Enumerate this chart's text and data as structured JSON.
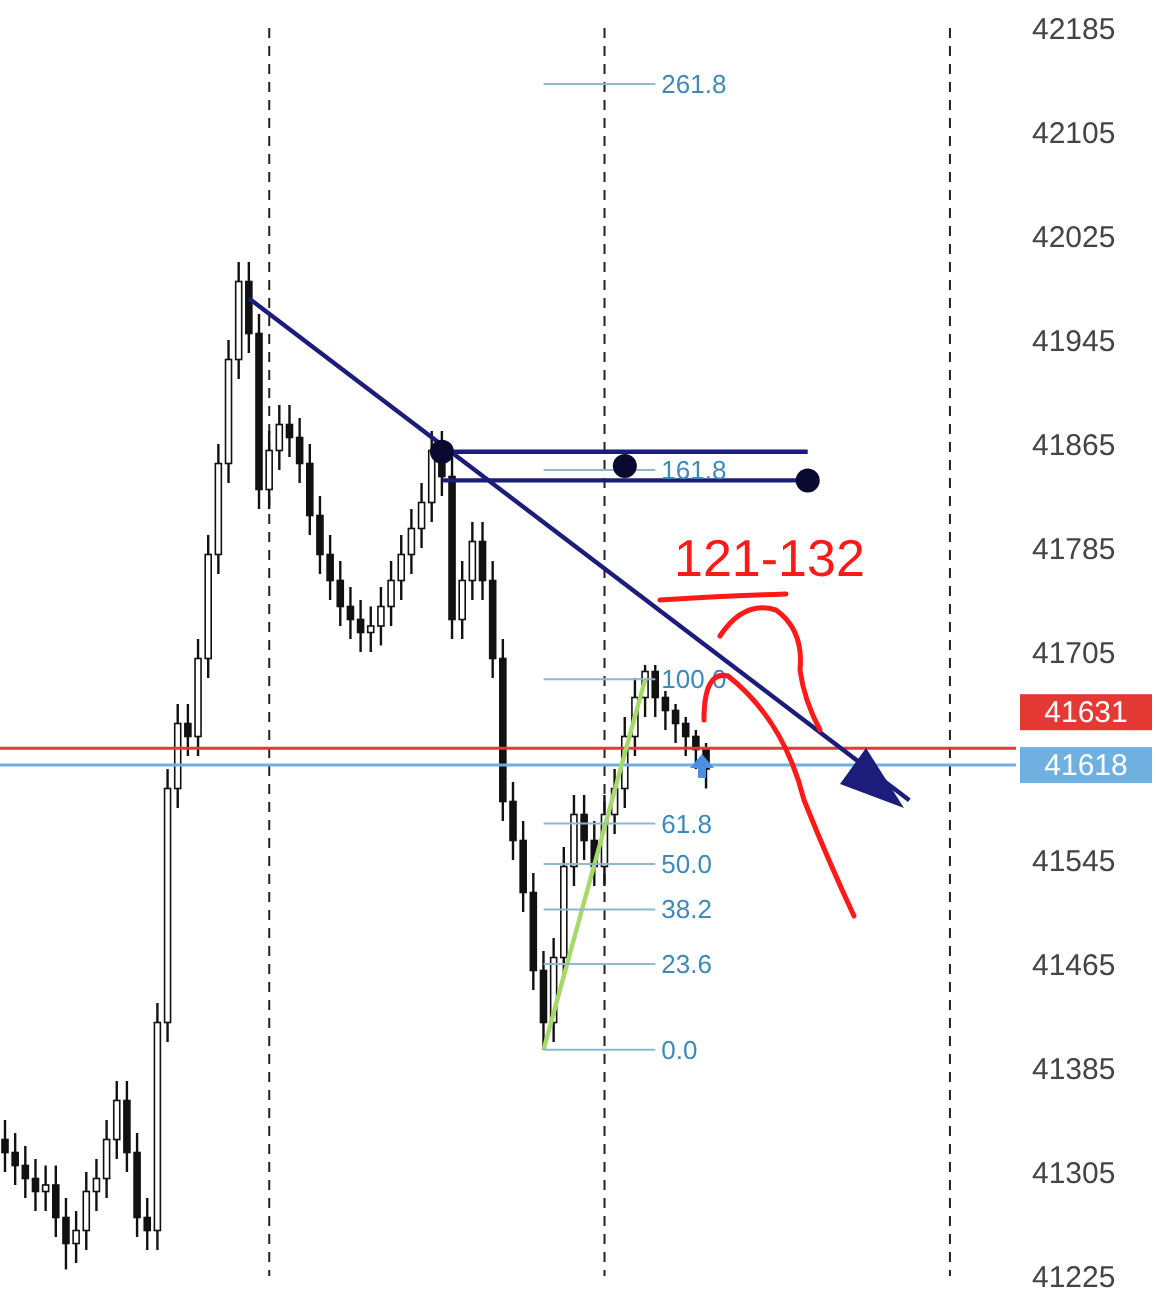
{
  "chart_data": {
    "type": "candlestick",
    "categories": [
      null,
      null,
      null,
      null,
      null,
      null,
      null,
      null,
      null,
      null,
      null,
      null,
      null,
      null,
      null,
      null,
      null,
      null,
      null,
      null,
      null,
      null,
      null,
      null,
      null,
      null,
      null,
      null,
      null,
      null,
      null,
      null,
      null,
      null,
      null,
      null,
      null,
      null,
      null,
      null,
      null,
      null,
      null,
      null,
      null,
      null,
      null,
      null,
      null,
      null,
      null,
      null,
      null,
      null,
      null,
      null,
      null,
      null,
      null,
      null,
      null,
      null,
      null,
      null,
      null,
      null,
      null,
      null,
      null,
      null,
      null,
      null,
      null,
      null,
      null,
      null,
      null,
      null,
      null,
      null,
      null,
      null,
      null,
      null,
      null,
      null,
      null,
      null,
      null,
      null,
      null,
      null,
      null,
      null,
      null,
      null,
      null,
      null,
      null,
      null
    ],
    "color": "#111111",
    "ohlc": [
      [
        41330,
        41345,
        41305,
        41320
      ],
      [
        41320,
        41335,
        41295,
        41310
      ],
      [
        41310,
        41325,
        41285,
        41300
      ],
      [
        41300,
        41315,
        41275,
        41290
      ],
      [
        41290,
        41310,
        41275,
        41295
      ],
      [
        41295,
        41310,
        41255,
        41270
      ],
      [
        41270,
        41285,
        41230,
        41250
      ],
      [
        41250,
        41275,
        41235,
        41260
      ],
      [
        41260,
        41305,
        41245,
        41290
      ],
      [
        41290,
        41315,
        41275,
        41300
      ],
      [
        41300,
        41345,
        41285,
        41330
      ],
      [
        41330,
        41375,
        41315,
        41360
      ],
      [
        41360,
        41375,
        41305,
        41320
      ],
      [
        41320,
        41335,
        41255,
        41270
      ],
      [
        41270,
        41285,
        41245,
        41260
      ],
      [
        41260,
        41435,
        41245,
        41420
      ],
      [
        41420,
        41615,
        41405,
        41600
      ],
      [
        41600,
        41665,
        41585,
        41650
      ],
      [
        41650,
        41665,
        41625,
        41640
      ],
      [
        41640,
        41715,
        41625,
        41700
      ],
      [
        41700,
        41795,
        41685,
        41780
      ],
      [
        41780,
        41865,
        41765,
        41850
      ],
      [
        41850,
        41945,
        41835,
        41930
      ],
      [
        41930,
        42005,
        41915,
        41990
      ],
      [
        41990,
        42005,
        41935,
        41950
      ],
      [
        41950,
        41965,
        41815,
        41830
      ],
      [
        41830,
        41875,
        41815,
        41860
      ],
      [
        41860,
        41895,
        41845,
        41880
      ],
      [
        41880,
        41895,
        41855,
        41870
      ],
      [
        41870,
        41885,
        41835,
        41850
      ],
      [
        41850,
        41865,
        41795,
        41810
      ],
      [
        41810,
        41825,
        41765,
        41780
      ],
      [
        41780,
        41795,
        41745,
        41760
      ],
      [
        41760,
        41775,
        41725,
        41740
      ],
      [
        41740,
        41755,
        41715,
        41730
      ],
      [
        41730,
        41745,
        41705,
        41720
      ],
      [
        41720,
        41740,
        41705,
        41725
      ],
      [
        41725,
        41755,
        41710,
        41740
      ],
      [
        41740,
        41775,
        41725,
        41760
      ],
      [
        41760,
        41795,
        41745,
        41780
      ],
      [
        41780,
        41815,
        41765,
        41800
      ],
      [
        41800,
        41835,
        41785,
        41820
      ],
      [
        41820,
        41875,
        41805,
        41860
      ],
      [
        41860,
        41875,
        41825,
        41840
      ],
      [
        41840,
        41855,
        41715,
        41730
      ],
      [
        41730,
        41775,
        41715,
        41760
      ],
      [
        41760,
        41805,
        41745,
        41790
      ],
      [
        41790,
        41805,
        41745,
        41760
      ],
      [
        41760,
        41775,
        41685,
        41700
      ],
      [
        41700,
        41715,
        41575,
        41590
      ],
      [
        41590,
        41605,
        41545,
        41560
      ],
      [
        41560,
        41575,
        41505,
        41520
      ],
      [
        41520,
        41535,
        41445,
        41460
      ],
      [
        41460,
        41475,
        41399,
        41420
      ],
      [
        41420,
        41485,
        41405,
        41470
      ],
      [
        41470,
        41555,
        41455,
        41540
      ],
      [
        41540,
        41595,
        41525,
        41580
      ],
      [
        41580,
        41595,
        41545,
        41560
      ],
      [
        41560,
        41575,
        41525,
        41540
      ],
      [
        41540,
        41595,
        41525,
        41580
      ],
      [
        41580,
        41615,
        41565,
        41600
      ],
      [
        41600,
        41655,
        41585,
        41640
      ],
      [
        41640,
        41685,
        41625,
        41670
      ],
      [
        41670,
        41695,
        41655,
        41690
      ],
      [
        41690,
        41695,
        41655,
        41670
      ],
      [
        41670,
        41675,
        41645,
        41660
      ],
      [
        41660,
        41665,
        41635,
        41650
      ],
      [
        41650,
        41655,
        41625,
        41640
      ],
      [
        41640,
        41645,
        41615,
        41630
      ],
      [
        41630,
        41635,
        41600,
        41615
      ],
      null,
      null,
      null,
      null,
      null,
      null,
      null,
      null,
      null,
      null,
      null,
      null,
      null,
      null,
      null,
      null,
      null,
      null,
      null,
      null,
      null,
      null,
      null,
      null,
      null,
      null,
      null,
      null,
      null,
      null
    ],
    "series": [
      {
        "type": "line",
        "color": "#1c1c7a",
        "values": [
          null,
          null,
          null,
          null,
          null,
          null,
          null,
          null,
          null,
          null,
          null,
          null,
          null,
          null,
          null,
          null,
          null,
          null,
          null,
          null,
          null,
          null,
          null,
          null,
          41977,
          null,
          null,
          null,
          null,
          null,
          null,
          null,
          null,
          null,
          null,
          null,
          null,
          null,
          null,
          null,
          null,
          null,
          null,
          null,
          null,
          null,
          null,
          null,
          null,
          null,
          null,
          null,
          null,
          null,
          null,
          null,
          null,
          null,
          null,
          null,
          null,
          null,
          null,
          null,
          null,
          null,
          null,
          null,
          null,
          null,
          null,
          null,
          null,
          null,
          null,
          null,
          null,
          null,
          null,
          null,
          null,
          null,
          null,
          null,
          null,
          null,
          null,
          null,
          null,
          41591,
          null,
          null,
          null,
          null,
          null,
          null,
          null,
          null,
          null,
          null
        ]
      },
      {
        "type": "line",
        "color": "#1c1c7a",
        "values": [
          null,
          null,
          null,
          null,
          null,
          null,
          null,
          null,
          null,
          null,
          null,
          null,
          null,
          null,
          null,
          null,
          null,
          null,
          null,
          null,
          null,
          null,
          null,
          null,
          null,
          null,
          null,
          null,
          null,
          null,
          null,
          null,
          null,
          null,
          null,
          null,
          null,
          null,
          null,
          null,
          null,
          null,
          null,
          41859,
          null,
          null,
          null,
          null,
          null,
          null,
          null,
          null,
          null,
          null,
          null,
          null,
          null,
          null,
          null,
          null,
          null,
          null,
          null,
          null,
          null,
          null,
          null,
          null,
          null,
          null,
          null,
          null,
          null,
          null,
          null,
          null,
          null,
          null,
          null,
          41859,
          null,
          null,
          null,
          null,
          null,
          null,
          null,
          null,
          null,
          null,
          null,
          null,
          null,
          null,
          null,
          null,
          null,
          null,
          null,
          null
        ]
      },
      {
        "type": "line",
        "color": "#1c1c7a",
        "values": [
          null,
          null,
          null,
          null,
          null,
          null,
          null,
          null,
          null,
          null,
          null,
          null,
          null,
          null,
          null,
          null,
          null,
          null,
          null,
          null,
          null,
          null,
          null,
          null,
          null,
          null,
          null,
          null,
          null,
          null,
          null,
          null,
          null,
          null,
          null,
          null,
          null,
          null,
          null,
          null,
          null,
          null,
          null,
          41837,
          null,
          null,
          null,
          null,
          null,
          null,
          null,
          null,
          null,
          null,
          null,
          null,
          null,
          null,
          null,
          null,
          null,
          null,
          null,
          null,
          null,
          null,
          null,
          null,
          null,
          null,
          null,
          null,
          null,
          null,
          null,
          null,
          null,
          null,
          null,
          41837,
          null,
          null,
          null,
          null,
          null,
          null,
          null,
          null,
          null,
          null,
          null,
          null,
          null,
          null,
          null,
          null,
          null,
          null,
          null,
          null
        ]
      },
      {
        "type": "scatter",
        "color": "#0a0a30",
        "values": [
          null,
          null,
          null,
          null,
          null,
          null,
          null,
          null,
          null,
          null,
          null,
          null,
          null,
          null,
          null,
          null,
          null,
          null,
          null,
          null,
          null,
          null,
          null,
          null,
          null,
          null,
          null,
          null,
          null,
          null,
          null,
          null,
          null,
          null,
          null,
          null,
          null,
          null,
          null,
          null,
          null,
          null,
          null,
          41859,
          null,
          null,
          null,
          null,
          null,
          null,
          null,
          null,
          null,
          null,
          null,
          null,
          null,
          null,
          null,
          null,
          null,
          41848,
          null,
          null,
          null,
          null,
          null,
          null,
          null,
          null,
          null,
          null,
          null,
          null,
          null,
          null,
          null,
          null,
          null,
          41837,
          null,
          null,
          null,
          null,
          null,
          null,
          null,
          null,
          null,
          null,
          null,
          null,
          null,
          null,
          null,
          null,
          null,
          null,
          null,
          null
        ]
      },
      {
        "type": "line",
        "color": "#a6d96a",
        "values": [
          null,
          null,
          null,
          null,
          null,
          null,
          null,
          null,
          null,
          null,
          null,
          null,
          null,
          null,
          null,
          null,
          null,
          null,
          null,
          null,
          null,
          null,
          null,
          null,
          null,
          null,
          null,
          null,
          null,
          null,
          null,
          null,
          null,
          null,
          null,
          null,
          null,
          null,
          null,
          null,
          null,
          null,
          null,
          null,
          null,
          null,
          null,
          null,
          null,
          null,
          null,
          null,
          null,
          41399,
          null,
          null,
          null,
          null,
          null,
          null,
          null,
          null,
          null,
          41684,
          null,
          null,
          null,
          null,
          null,
          null,
          null,
          null,
          null,
          null,
          null,
          null,
          null,
          null,
          null,
          null,
          null,
          null,
          null,
          null,
          null,
          null,
          null,
          null,
          null,
          null,
          null,
          null,
          null,
          null,
          null,
          null,
          null,
          null,
          null,
          null
        ]
      },
      {
        "type": "line",
        "name": "261.8",
        "color": "#8fb8cc",
        "values": [
          null,
          null,
          null,
          null,
          null,
          null,
          null,
          null,
          null,
          null,
          null,
          null,
          null,
          null,
          null,
          null,
          null,
          null,
          null,
          null,
          null,
          null,
          null,
          null,
          null,
          null,
          null,
          null,
          null,
          null,
          null,
          null,
          null,
          null,
          null,
          null,
          null,
          null,
          null,
          null,
          null,
          null,
          null,
          null,
          null,
          null,
          null,
          null,
          null,
          null,
          null,
          null,
          null,
          42142,
          null,
          null,
          null,
          null,
          null,
          null,
          null,
          null,
          null,
          null,
          42142,
          null,
          null,
          null,
          null,
          null,
          null,
          null,
          null,
          null,
          null,
          null,
          null,
          null,
          null,
          null,
          null,
          null,
          null,
          null,
          null,
          null,
          null,
          null,
          null,
          null,
          null,
          null,
          null,
          null,
          null,
          null,
          null,
          null,
          null,
          null
        ]
      },
      {
        "type": "line",
        "name": "161.8",
        "color": "#8fb8cc",
        "values": [
          null,
          null,
          null,
          null,
          null,
          null,
          null,
          null,
          null,
          null,
          null,
          null,
          null,
          null,
          null,
          null,
          null,
          null,
          null,
          null,
          null,
          null,
          null,
          null,
          null,
          null,
          null,
          null,
          null,
          null,
          null,
          null,
          null,
          null,
          null,
          null,
          null,
          null,
          null,
          null,
          null,
          null,
          null,
          null,
          null,
          null,
          null,
          null,
          null,
          null,
          null,
          null,
          null,
          41845,
          null,
          null,
          null,
          null,
          null,
          null,
          null,
          null,
          null,
          null,
          41845,
          null,
          null,
          null,
          null,
          null,
          null,
          null,
          null,
          null,
          null,
          null,
          null,
          null,
          null,
          null,
          null,
          null,
          null,
          null,
          null,
          null,
          null,
          null,
          null,
          null,
          null,
          null,
          null,
          null,
          null,
          null,
          null,
          null,
          null,
          null
        ]
      },
      {
        "type": "line",
        "name": "100.0",
        "color": "#8fb8cc",
        "values": [
          null,
          null,
          null,
          null,
          null,
          null,
          null,
          null,
          null,
          null,
          null,
          null,
          null,
          null,
          null,
          null,
          null,
          null,
          null,
          null,
          null,
          null,
          null,
          null,
          null,
          null,
          null,
          null,
          null,
          null,
          null,
          null,
          null,
          null,
          null,
          null,
          null,
          null,
          null,
          null,
          null,
          null,
          null,
          null,
          null,
          null,
          null,
          null,
          null,
          null,
          null,
          null,
          null,
          41684,
          null,
          null,
          null,
          null,
          null,
          null,
          null,
          null,
          null,
          null,
          41684,
          null,
          null,
          null,
          null,
          null,
          null,
          null,
          null,
          null,
          null,
          null,
          null,
          null,
          null,
          null,
          null,
          null,
          null,
          null,
          null,
          null,
          null,
          null,
          null,
          null,
          null,
          null,
          null,
          null,
          null,
          null,
          null,
          null,
          null,
          null
        ]
      },
      {
        "type": "line",
        "name": "61.8",
        "color": "#8fb8cc",
        "values": [
          null,
          null,
          null,
          null,
          null,
          null,
          null,
          null,
          null,
          null,
          null,
          null,
          null,
          null,
          null,
          null,
          null,
          null,
          null,
          null,
          null,
          null,
          null,
          null,
          null,
          null,
          null,
          null,
          null,
          null,
          null,
          null,
          null,
          null,
          null,
          null,
          null,
          null,
          null,
          null,
          null,
          null,
          null,
          null,
          null,
          null,
          null,
          null,
          null,
          null,
          null,
          null,
          null,
          41573,
          null,
          null,
          null,
          null,
          null,
          null,
          null,
          null,
          null,
          null,
          41573,
          null,
          null,
          null,
          null,
          null,
          null,
          null,
          null,
          null,
          null,
          null,
          null,
          null,
          null,
          null,
          null,
          null,
          null,
          null,
          null,
          null,
          null,
          null,
          null,
          null,
          null,
          null,
          null,
          null,
          null,
          null,
          null,
          null,
          null,
          null
        ]
      },
      {
        "type": "line",
        "name": "50.0",
        "color": "#8fb8cc",
        "values": [
          null,
          null,
          null,
          null,
          null,
          null,
          null,
          null,
          null,
          null,
          null,
          null,
          null,
          null,
          null,
          null,
          null,
          null,
          null,
          null,
          null,
          null,
          null,
          null,
          null,
          null,
          null,
          null,
          null,
          null,
          null,
          null,
          null,
          null,
          null,
          null,
          null,
          null,
          null,
          null,
          null,
          null,
          null,
          null,
          null,
          null,
          null,
          null,
          null,
          null,
          null,
          null,
          null,
          41542,
          null,
          null,
          null,
          null,
          null,
          null,
          null,
          null,
          null,
          null,
          41542,
          null,
          null,
          null,
          null,
          null,
          null,
          null,
          null,
          null,
          null,
          null,
          null,
          null,
          null,
          null,
          null,
          null,
          null,
          null,
          null,
          null,
          null,
          null,
          null,
          null,
          null,
          null,
          null,
          null,
          null,
          null,
          null,
          null,
          null,
          null
        ]
      },
      {
        "type": "line",
        "name": "38.2",
        "color": "#8fb8cc",
        "values": [
          null,
          null,
          null,
          null,
          null,
          null,
          null,
          null,
          null,
          null,
          null,
          null,
          null,
          null,
          null,
          null,
          null,
          null,
          null,
          null,
          null,
          null,
          null,
          null,
          null,
          null,
          null,
          null,
          null,
          null,
          null,
          null,
          null,
          null,
          null,
          null,
          null,
          null,
          null,
          null,
          null,
          null,
          null,
          null,
          null,
          null,
          null,
          null,
          null,
          null,
          null,
          null,
          null,
          41507,
          null,
          null,
          null,
          null,
          null,
          null,
          null,
          null,
          null,
          null,
          41507,
          null,
          null,
          null,
          null,
          null,
          null,
          null,
          null,
          null,
          null,
          null,
          null,
          null,
          null,
          null,
          null,
          null,
          null,
          null,
          null,
          null,
          null,
          null,
          null,
          null,
          null,
          null,
          null,
          null,
          null,
          null,
          null,
          null,
          null,
          null
        ]
      },
      {
        "type": "line",
        "name": "23.6",
        "color": "#8fb8cc",
        "values": [
          null,
          null,
          null,
          null,
          null,
          null,
          null,
          null,
          null,
          null,
          null,
          null,
          null,
          null,
          null,
          null,
          null,
          null,
          null,
          null,
          null,
          null,
          null,
          null,
          null,
          null,
          null,
          null,
          null,
          null,
          null,
          null,
          null,
          null,
          null,
          null,
          null,
          null,
          null,
          null,
          null,
          null,
          null,
          null,
          null,
          null,
          null,
          null,
          null,
          null,
          null,
          null,
          null,
          41465,
          null,
          null,
          null,
          null,
          null,
          null,
          null,
          null,
          null,
          null,
          41465,
          null,
          null,
          null,
          null,
          null,
          null,
          null,
          null,
          null,
          null,
          null,
          null,
          null,
          null,
          null,
          null,
          null,
          null,
          null,
          null,
          null,
          null,
          null,
          null,
          null,
          null,
          null,
          null,
          null,
          null,
          null,
          null,
          null,
          null,
          null
        ]
      },
      {
        "type": "line",
        "name": "0.0",
        "color": "#8fb8cc",
        "values": [
          null,
          null,
          null,
          null,
          null,
          null,
          null,
          null,
          null,
          null,
          null,
          null,
          null,
          null,
          null,
          null,
          null,
          null,
          null,
          null,
          null,
          null,
          null,
          null,
          null,
          null,
          null,
          null,
          null,
          null,
          null,
          null,
          null,
          null,
          null,
          null,
          null,
          null,
          null,
          null,
          null,
          null,
          null,
          null,
          null,
          null,
          null,
          null,
          null,
          null,
          null,
          null,
          null,
          41399,
          null,
          null,
          null,
          null,
          null,
          null,
          null,
          null,
          null,
          null,
          41399,
          null,
          null,
          null,
          null,
          null,
          null,
          null,
          null,
          null,
          null,
          null,
          null,
          null,
          null,
          null,
          null,
          null,
          null,
          null,
          null,
          null,
          null,
          null,
          null,
          null,
          null,
          null,
          null,
          null,
          null,
          null,
          null,
          null,
          null,
          null
        ]
      }
    ],
    "ylim": [
      41225,
      42185
    ],
    "yticks": [
      41225,
      41305,
      41385,
      41465,
      41545,
      41705,
      41785,
      41865,
      41945,
      42025,
      42105,
      42185
    ],
    "tick_labels": "y",
    "grid": "x",
    "ref_lines": [
      {
        "axis": "y",
        "value": 41631,
        "label": "41631",
        "color": "#e53935"
      },
      {
        "axis": "y",
        "value": 41618,
        "label": "41618",
        "color": "#6fb0e0"
      }
    ],
    "annotations": [
      "121-132"
    ]
  }
}
